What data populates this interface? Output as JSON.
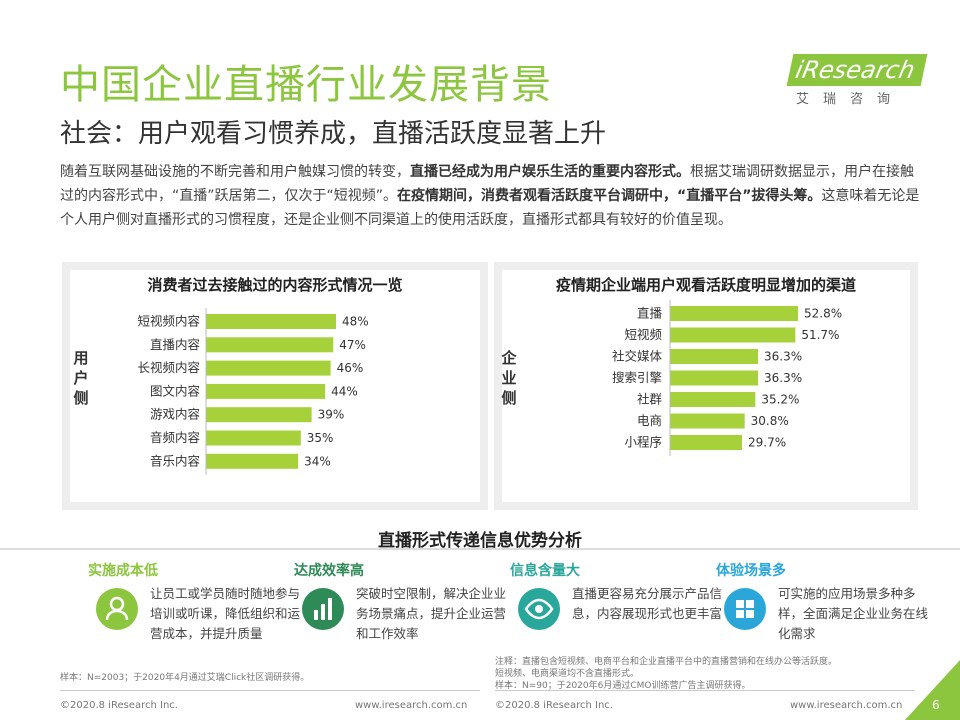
{
  "header": {
    "title": "中国企业直播行业发展背景",
    "subtitle": "社会：用户观看习惯养成，直播活跃度显著上升",
    "logo_text": "iResearch",
    "logo_sub": "艾瑞咨询"
  },
  "intro": {
    "p1": "随着互联网基础设施的不断完善和用户触媒习惯的转变，",
    "b1": "直播已经成为用户娱乐生活的重要内容形式。",
    "p2": "根据艾瑞调研数据显示，用户在接触过的内容形式中，“直播”跃居第二，仅次于“短视频”。",
    "b2": "在疫情期间，消费者观看活跃度平台调研中，“直播平台”拔得头筹。",
    "p3": "这意味着无论是个人用户侧对直播形式的习惯程度，还是企业侧不同渠道上的使用活跃度，直播形式都具有较好的价值呈现。"
  },
  "chart_data": [
    {
      "type": "bar",
      "title": "消费者过去接触过的内容形式情况一览",
      "side_label": "用户侧",
      "categories": [
        "短视频内容",
        "直播内容",
        "长视频内容",
        "图文内容",
        "游戏内容",
        "音频内容",
        "音乐内容"
      ],
      "values": [
        48,
        47,
        46,
        44,
        39,
        35,
        34
      ],
      "labels": [
        "48%",
        "47%",
        "46%",
        "44%",
        "39%",
        "35%",
        "34%"
      ],
      "color": "#a6d13a"
    },
    {
      "type": "bar",
      "title": "疫情期企业端用户观看活跃度明显增加的渠道",
      "side_label": "企业侧",
      "categories": [
        "直播",
        "短视频",
        "社交媒体",
        "搜索引擎",
        "社群",
        "电商",
        "小程序"
      ],
      "values": [
        52.8,
        51.7,
        36.3,
        36.3,
        35.2,
        30.8,
        29.7
      ],
      "labels": [
        "52.8%",
        "51.7%",
        "36.3%",
        "36.3%",
        "35.2%",
        "30.8%",
        "29.7%"
      ],
      "color": "#a6d13a"
    }
  ],
  "section": {
    "title": "直播形式传递信息优势分析",
    "features": [
      {
        "title": "实施成本低",
        "desc": "让员工或学员随时随地参与培训或听课，降低组织和运营成本，并提升质量",
        "color": "#8cc63f"
      },
      {
        "title": "达成效率高",
        "desc": "突破时空限制，解决企业业务场景痛点，提升企业运营和工作效率",
        "color": "#2e8b57"
      },
      {
        "title": "信息含量大",
        "desc": "直播更容易充分展示产品信息，内容展现形式也更丰富",
        "color": "#2aa79b"
      },
      {
        "title": "体验场景多",
        "desc": "可实施的应用场景多种多样，全面满足企业业务在线化需求",
        "color": "#2aa7d8"
      }
    ]
  },
  "footer": {
    "note_left": "样本：N=2003；于2020年4月通过艾瑞Click社区调研获得。",
    "note_right1": "注释：直播包含短视频、电商平台和企业直播平台中的直播营销和在线办公等活跃度。",
    "note_right2": "短视频、电商渠道均不含直播形式。",
    "note_right3": "样本：N=90；于2020年6月通过CMO训练营广告主调研获得。",
    "copy_left": "©2020.8 iResearch Inc.",
    "url_left": "www.iresearch.com.cn",
    "copy_right": "©2020.8 iResearch Inc.",
    "url_right": "www.iresearch.com.cn",
    "page": "6"
  }
}
